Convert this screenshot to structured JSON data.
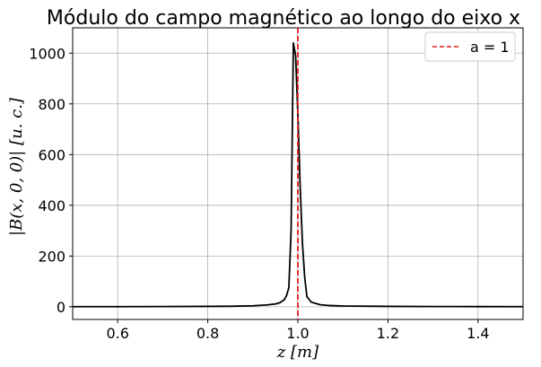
{
  "chart_data": {
    "type": "line",
    "title": "Módulo do campo magnético ao longo do eixo x",
    "xlabel": "z [m]",
    "ylabel": "|B(x, 0, 0)| [u. c.]",
    "xlim": [
      0.5,
      1.5
    ],
    "ylim": [
      -50,
      1100
    ],
    "grid": true,
    "legend_position": "top-right",
    "x_ticks": [
      0.6,
      0.8,
      1.0,
      1.2,
      1.4
    ],
    "x_tick_labels": [
      "0.6",
      "0.8",
      "1.0",
      "1.2",
      "1.4"
    ],
    "y_ticks": [
      0,
      200,
      400,
      600,
      800,
      1000
    ],
    "y_tick_labels": [
      "0",
      "200",
      "400",
      "600",
      "800",
      "1000"
    ],
    "series": [
      {
        "color": "#000000",
        "style": "solid",
        "x": [
          0.5,
          0.6,
          0.7,
          0.8,
          0.85,
          0.9,
          0.93,
          0.95,
          0.96,
          0.97,
          0.975,
          0.98,
          0.985,
          0.99,
          0.995,
          1.0,
          1.005,
          1.01,
          1.015,
          1.02,
          1.03,
          1.05,
          1.07,
          1.1,
          1.2,
          1.3,
          1.4,
          1.5
        ],
        "y": [
          0.3,
          0.5,
          1,
          1.5,
          2,
          4,
          7,
          11,
          16,
          28,
          45,
          75,
          300,
          1040,
          990,
          760,
          480,
          255,
          120,
          40,
          18,
          8,
          5,
          3,
          1.5,
          1,
          0.7,
          0.5
        ]
      },
      {
        "name": "a = 1",
        "color": "#e41a1c",
        "style": "dashed",
        "vline_x": 1.0
      }
    ]
  }
}
